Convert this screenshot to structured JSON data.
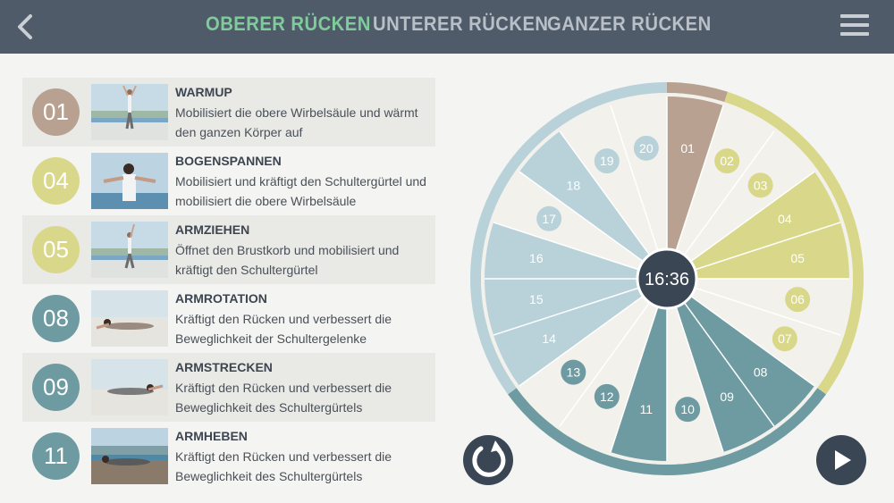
{
  "header": {
    "tabs": [
      {
        "label": "OBERER RÜCKEN",
        "active": true
      },
      {
        "label": "UNTERER RÜCKEN",
        "active": false
      },
      {
        "label": "GANZER RÜCKEN",
        "active": false
      }
    ],
    "back_icon": "chevron-left-icon",
    "menu_icon": "hamburger-menu-icon"
  },
  "exercises": [
    {
      "number": "01",
      "title": "WARMUP",
      "description": "Mobilisiert die obere Wirbelsäule und wärmt den ganzen Körper auf",
      "color": "#b8a190"
    },
    {
      "number": "04",
      "title": "BOGENSPANNEN",
      "description": "Mobilisiert und kräftigt den Schultergürtel und mobilisiert die obere Wirbelsäule",
      "color": "#d9d88a"
    },
    {
      "number": "05",
      "title": "ARMZIEHEN",
      "description": "Öffnet den Brustkorb und mobilisiert und kräftigt den Schultergürtel",
      "color": "#d9d88a"
    },
    {
      "number": "08",
      "title": "ARMROTATION",
      "description": "Kräftigt den Rücken und verbessert die Beweglichkeit der Schultergelenke",
      "color": "#6e9ba1"
    },
    {
      "number": "09",
      "title": "ARMSTRECKEN",
      "description": "Kräftigt den Rücken und verbessert die Beweglichkeit des Schultergürtels",
      "color": "#6e9ba1"
    },
    {
      "number": "11",
      "title": "ARMHEBEN",
      "description": "Kräftigt den Rücken und verbessert die Beweglichkeit des Schultergürtels",
      "color": "#6e9ba1"
    }
  ],
  "wheel": {
    "time": "16:36",
    "segments": [
      {
        "label": "01",
        "style": "wedge",
        "color": "#b8a190"
      },
      {
        "label": "02",
        "style": "dot",
        "color": "#d9d88a"
      },
      {
        "label": "03",
        "style": "dot",
        "color": "#d9d88a"
      },
      {
        "label": "04",
        "style": "wedge",
        "color": "#d9d88a"
      },
      {
        "label": "05",
        "style": "wedge",
        "color": "#d9d88a"
      },
      {
        "label": "06",
        "style": "dot",
        "color": "#d9d88a"
      },
      {
        "label": "07",
        "style": "dot",
        "color": "#d9d88a"
      },
      {
        "label": "08",
        "style": "wedge",
        "color": "#6e9ba1"
      },
      {
        "label": "09",
        "style": "wedge",
        "color": "#6e9ba1"
      },
      {
        "label": "10",
        "style": "dot",
        "color": "#6e9ba1"
      },
      {
        "label": "11",
        "style": "wedge",
        "color": "#6e9ba1"
      },
      {
        "label": "12",
        "style": "dot",
        "color": "#6e9ba1"
      },
      {
        "label": "13",
        "style": "dot",
        "color": "#6e9ba1"
      },
      {
        "label": "14",
        "style": "wedge",
        "color": "#b9d2da"
      },
      {
        "label": "15",
        "style": "wedge",
        "color": "#b9d2da"
      },
      {
        "label": "16",
        "style": "wedge",
        "color": "#b9d2da"
      },
      {
        "label": "17",
        "style": "dot",
        "color": "#b9d2da"
      },
      {
        "label": "18",
        "style": "wedge",
        "color": "#b9d2da"
      },
      {
        "label": "19",
        "style": "dot",
        "color": "#b9d2da"
      },
      {
        "label": "20",
        "style": "dot",
        "color": "#b9d2da"
      }
    ],
    "ring": [
      {
        "from": 0,
        "to": 1,
        "color": "#b8a190"
      },
      {
        "from": 1,
        "to": 7,
        "color": "#d9d88a"
      },
      {
        "from": 7,
        "to": 13,
        "color": "#6e9ba1"
      },
      {
        "from": 13,
        "to": 20,
        "color": "#b9d2da"
      }
    ]
  },
  "controls": {
    "reset_icon": "restart-icon",
    "play_icon": "play-icon"
  }
}
